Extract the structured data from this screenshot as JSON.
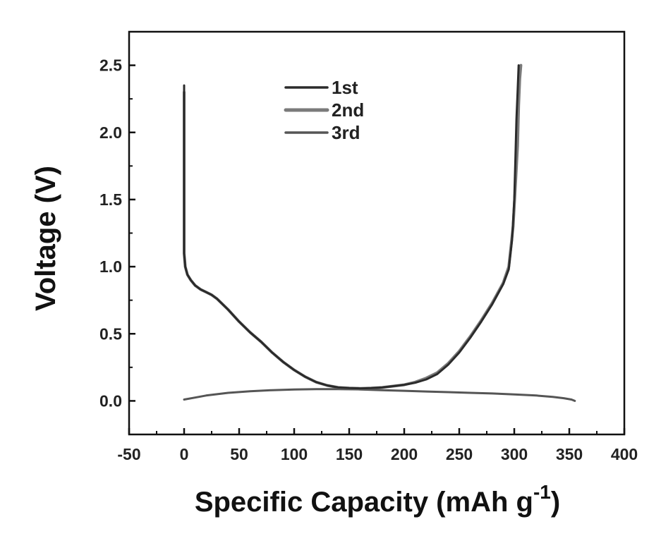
{
  "chart_data": {
    "type": "line",
    "xlabel": "Specific Capacity (mAh g",
    "xlabel_superscript": "-1",
    "xlabel_suffix": ")",
    "ylabel": "Voltage (V)",
    "xlim": [
      -50,
      400
    ],
    "ylim": [
      -0.25,
      2.75
    ],
    "xticks": [
      -50,
      0,
      50,
      100,
      150,
      200,
      250,
      300,
      350,
      400
    ],
    "yticks": [
      0.0,
      0.5,
      1.0,
      1.5,
      2.0,
      2.5
    ],
    "ytick_labels": [
      "0.0",
      "0.5",
      "1.0",
      "1.5",
      "2.0",
      "2.5"
    ],
    "grid": false,
    "legend_position": "top-center",
    "series": [
      {
        "name": "1st",
        "color": "#2b2b2b",
        "x": [
          0,
          0,
          0,
          0,
          0,
          1,
          3,
          6,
          10,
          15,
          20,
          25,
          30,
          40,
          50,
          60,
          70,
          80,
          90,
          100,
          110,
          120,
          130,
          140,
          150,
          160,
          170,
          180,
          190,
          200,
          210,
          220,
          230,
          240,
          250,
          260,
          270,
          280,
          290,
          295,
          298,
          300,
          301,
          302,
          303,
          304
        ],
        "y": [
          2.35,
          2.0,
          1.5,
          1.2,
          1.1,
          1.0,
          0.94,
          0.9,
          0.86,
          0.83,
          0.81,
          0.79,
          0.76,
          0.68,
          0.59,
          0.51,
          0.44,
          0.36,
          0.29,
          0.23,
          0.18,
          0.14,
          0.115,
          0.1,
          0.095,
          0.093,
          0.095,
          0.1,
          0.11,
          0.12,
          0.135,
          0.16,
          0.2,
          0.27,
          0.36,
          0.47,
          0.59,
          0.72,
          0.87,
          0.98,
          1.2,
          1.5,
          1.8,
          2.1,
          2.3,
          2.5
        ]
      },
      {
        "name": "2nd",
        "color": "#7a7a7a",
        "x": [
          0,
          0,
          0,
          0,
          1,
          3,
          6,
          10,
          15,
          20,
          25,
          30,
          40,
          50,
          60,
          70,
          80,
          90,
          100,
          110,
          120,
          130,
          140,
          150,
          160,
          170,
          180,
          190,
          200,
          210,
          220,
          230,
          240,
          250,
          260,
          270,
          280,
          290,
          295,
          299,
          301,
          303,
          304,
          305,
          306
        ],
        "y": [
          2.3,
          1.9,
          1.4,
          1.1,
          1.0,
          0.94,
          0.9,
          0.86,
          0.83,
          0.81,
          0.79,
          0.76,
          0.68,
          0.59,
          0.51,
          0.44,
          0.36,
          0.29,
          0.23,
          0.18,
          0.14,
          0.115,
          0.1,
          0.095,
          0.093,
          0.095,
          0.1,
          0.11,
          0.12,
          0.14,
          0.17,
          0.21,
          0.28,
          0.37,
          0.48,
          0.6,
          0.73,
          0.88,
          1.0,
          1.3,
          1.6,
          1.9,
          2.2,
          2.4,
          2.5
        ]
      },
      {
        "name": "3rd",
        "color": "#555555",
        "x": [
          0,
          10,
          20,
          40,
          60,
          80,
          100,
          120,
          140,
          160,
          180,
          200,
          220,
          240,
          260,
          280,
          300,
          320,
          335,
          345,
          352,
          355
        ],
        "y": [
          0.01,
          0.025,
          0.04,
          0.06,
          0.072,
          0.08,
          0.085,
          0.088,
          0.088,
          0.085,
          0.08,
          0.075,
          0.07,
          0.065,
          0.06,
          0.055,
          0.048,
          0.04,
          0.03,
          0.02,
          0.01,
          0.0
        ]
      }
    ]
  }
}
